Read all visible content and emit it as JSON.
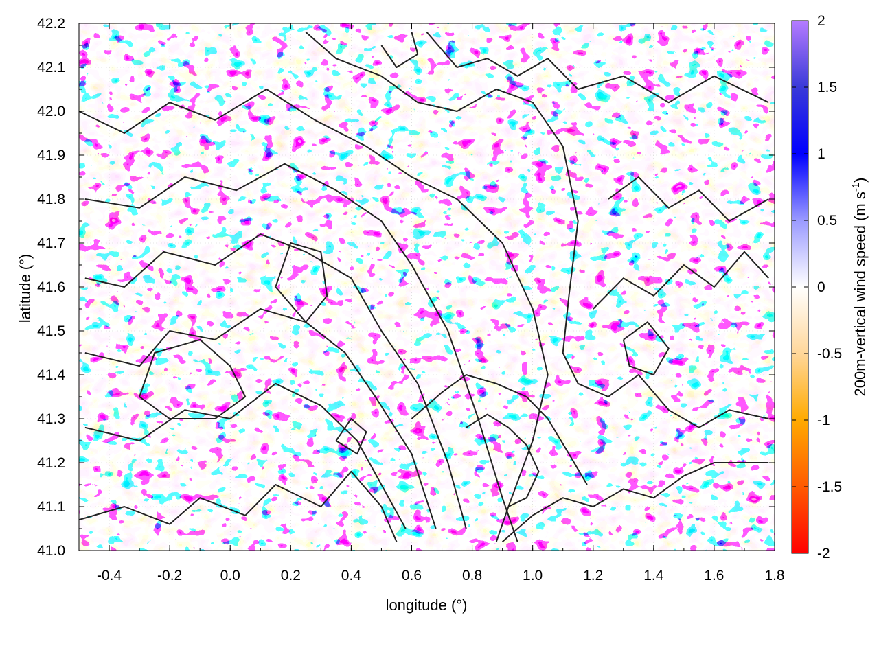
{
  "chart_data": {
    "type": "heatmap",
    "title": "",
    "xlabel": "longitude (°)",
    "ylabel": "latitude (°)",
    "xlim": [
      -0.5,
      1.8
    ],
    "ylim": [
      41.0,
      42.2
    ],
    "x_ticks": [
      "-0.4",
      "-0.2",
      "0.0",
      "0.2",
      "0.4",
      "0.6",
      "0.8",
      "1.0",
      "1.2",
      "1.4",
      "1.6",
      "1.8"
    ],
    "x_tick_values": [
      -0.4,
      -0.2,
      0.0,
      0.2,
      0.4,
      0.6,
      0.8,
      1.0,
      1.2,
      1.4,
      1.6,
      1.8
    ],
    "y_ticks": [
      "41.0",
      "41.1",
      "41.2",
      "41.3",
      "41.4",
      "41.5",
      "41.6",
      "41.7",
      "41.8",
      "41.9",
      "42.0",
      "42.1",
      "42.2"
    ],
    "y_tick_values": [
      41.0,
      41.1,
      41.2,
      41.3,
      41.4,
      41.5,
      41.6,
      41.7,
      41.8,
      41.9,
      42.0,
      42.1,
      42.2
    ],
    "colorbar": {
      "label": "200m-vertical wind speed (m s",
      "label_superscript": "-1",
      "label_close": ")",
      "range": [
        -2,
        2
      ],
      "ticks": [
        "2",
        "1.5",
        "1",
        "0.5",
        "0",
        "-0.5",
        "-1",
        "-1.5",
        "-2"
      ],
      "tick_values": [
        2,
        1.5,
        1,
        0.5,
        0,
        -0.5,
        -1,
        -1.5,
        -2
      ],
      "colors": [
        {
          "value": -2,
          "color": "#ff0000"
        },
        {
          "value": -1.5,
          "color": "#ff5a00"
        },
        {
          "value": -1,
          "color": "#ffaa00"
        },
        {
          "value": -0.5,
          "color": "#ffd79a"
        },
        {
          "value": 0,
          "color": "#ffffff"
        },
        {
          "value": 0.5,
          "color": "#9a9aff"
        },
        {
          "value": 1,
          "color": "#0000ff"
        },
        {
          "value": 1.5,
          "color": "#3a3ad8"
        },
        {
          "value": 2,
          "color": "#b57cff"
        }
      ]
    },
    "grid": true,
    "contour_color": "#222222",
    "field_description_colors": {
      "downdraft": "#ffb347",
      "updraft": "#1a1aff",
      "neutral": "#ffffff"
    },
    "contours": [
      [
        [
          -0.5,
          41.07
        ],
        [
          -0.35,
          41.1
        ],
        [
          -0.2,
          41.06
        ],
        [
          -0.1,
          41.12
        ],
        [
          0.05,
          41.08
        ],
        [
          0.15,
          41.15
        ],
        [
          0.3,
          41.1
        ],
        [
          0.4,
          41.18
        ],
        [
          0.5,
          41.1
        ],
        [
          0.55,
          41.02
        ]
      ],
      [
        [
          -0.48,
          41.28
        ],
        [
          -0.3,
          41.25
        ],
        [
          -0.15,
          41.32
        ],
        [
          0.0,
          41.3
        ],
        [
          0.15,
          41.38
        ],
        [
          0.3,
          41.33
        ],
        [
          0.42,
          41.25
        ],
        [
          0.5,
          41.15
        ],
        [
          0.58,
          41.05
        ]
      ],
      [
        [
          -0.48,
          41.45
        ],
        [
          -0.3,
          41.42
        ],
        [
          -0.2,
          41.5
        ],
        [
          -0.05,
          41.48
        ],
        [
          0.1,
          41.55
        ],
        [
          0.25,
          41.52
        ],
        [
          0.38,
          41.45
        ],
        [
          0.48,
          41.35
        ],
        [
          0.6,
          41.22
        ],
        [
          0.68,
          41.05
        ]
      ],
      [
        [
          -0.48,
          41.62
        ],
        [
          -0.35,
          41.6
        ],
        [
          -0.22,
          41.68
        ],
        [
          -0.05,
          41.65
        ],
        [
          0.1,
          41.72
        ],
        [
          0.25,
          41.68
        ],
        [
          0.4,
          41.62
        ],
        [
          0.5,
          41.5
        ],
        [
          0.62,
          41.38
        ],
        [
          0.72,
          41.2
        ],
        [
          0.78,
          41.05
        ]
      ],
      [
        [
          -0.48,
          41.8
        ],
        [
          -0.3,
          41.78
        ],
        [
          -0.15,
          41.85
        ],
        [
          0.02,
          41.82
        ],
        [
          0.18,
          41.88
        ],
        [
          0.35,
          41.82
        ],
        [
          0.5,
          41.75
        ],
        [
          0.6,
          41.65
        ],
        [
          0.72,
          41.5
        ],
        [
          0.82,
          41.3
        ],
        [
          0.9,
          41.12
        ],
        [
          0.95,
          41.02
        ]
      ],
      [
        [
          -0.5,
          42.0
        ],
        [
          -0.35,
          41.95
        ],
        [
          -0.2,
          42.02
        ],
        [
          -0.05,
          41.98
        ],
        [
          0.12,
          42.05
        ],
        [
          0.28,
          41.98
        ],
        [
          0.45,
          41.92
        ],
        [
          0.6,
          41.85
        ],
        [
          0.75,
          41.8
        ],
        [
          0.9,
          41.7
        ],
        [
          1.0,
          41.55
        ],
        [
          1.05,
          41.4
        ],
        [
          1.0,
          41.25
        ],
        [
          0.92,
          41.1
        ],
        [
          0.88,
          41.02
        ]
      ],
      [
        [
          0.25,
          42.18
        ],
        [
          0.35,
          42.12
        ],
        [
          0.5,
          42.08
        ],
        [
          0.62,
          42.02
        ],
        [
          0.75,
          42.0
        ],
        [
          0.88,
          42.05
        ],
        [
          1.0,
          42.02
        ],
        [
          1.1,
          41.92
        ],
        [
          1.15,
          41.75
        ],
        [
          1.12,
          41.58
        ],
        [
          1.1,
          41.45
        ],
        [
          1.15,
          41.38
        ],
        [
          1.25,
          41.35
        ],
        [
          1.35,
          41.4
        ],
        [
          1.45,
          41.32
        ],
        [
          1.55,
          41.28
        ],
        [
          1.65,
          41.32
        ],
        [
          1.78,
          41.3
        ]
      ],
      [
        [
          0.65,
          42.18
        ],
        [
          0.75,
          42.1
        ],
        [
          0.85,
          42.12
        ],
        [
          0.95,
          42.08
        ],
        [
          1.05,
          42.12
        ],
        [
          1.15,
          42.05
        ],
        [
          1.3,
          42.08
        ],
        [
          1.45,
          42.02
        ],
        [
          1.6,
          42.08
        ],
        [
          1.78,
          42.02
        ]
      ],
      [
        [
          0.9,
          41.02
        ],
        [
          1.0,
          41.08
        ],
        [
          1.1,
          41.12
        ],
        [
          1.2,
          41.1
        ],
        [
          1.3,
          41.14
        ],
        [
          1.4,
          41.12
        ],
        [
          1.5,
          41.17
        ],
        [
          1.6,
          41.2
        ],
        [
          1.7,
          41.2
        ],
        [
          1.78,
          41.2
        ]
      ],
      [
        [
          0.6,
          41.3
        ],
        [
          0.7,
          41.36
        ],
        [
          0.78,
          41.4
        ],
        [
          0.88,
          41.38
        ],
        [
          0.98,
          41.35
        ],
        [
          1.05,
          41.3
        ],
        [
          1.12,
          41.22
        ],
        [
          1.18,
          41.15
        ]
      ],
      [
        [
          0.78,
          41.28
        ],
        [
          0.85,
          41.31
        ],
        [
          0.92,
          41.28
        ],
        [
          0.98,
          41.24
        ],
        [
          1.02,
          41.18
        ],
        [
          0.98,
          41.12
        ],
        [
          0.92,
          41.1
        ]
      ],
      [
        [
          1.2,
          41.55
        ],
        [
          1.3,
          41.62
        ],
        [
          1.4,
          41.58
        ],
        [
          1.5,
          41.65
        ],
        [
          1.6,
          41.6
        ],
        [
          1.7,
          41.68
        ],
        [
          1.78,
          41.62
        ]
      ],
      [
        [
          1.25,
          41.8
        ],
        [
          1.35,
          41.85
        ],
        [
          1.45,
          41.78
        ],
        [
          1.55,
          41.82
        ],
        [
          1.65,
          41.75
        ],
        [
          1.78,
          41.8
        ]
      ],
      [
        [
          -0.3,
          41.35
        ],
        [
          -0.25,
          41.45
        ],
        [
          -0.1,
          41.48
        ],
        [
          0.0,
          41.42
        ],
        [
          0.05,
          41.35
        ],
        [
          -0.05,
          41.3
        ],
        [
          -0.2,
          41.3
        ],
        [
          -0.3,
          41.35
        ]
      ],
      [
        [
          0.15,
          41.6
        ],
        [
          0.2,
          41.7
        ],
        [
          0.3,
          41.68
        ],
        [
          0.32,
          41.58
        ],
        [
          0.25,
          41.52
        ],
        [
          0.15,
          41.6
        ]
      ],
      [
        [
          0.5,
          42.15
        ],
        [
          0.55,
          42.1
        ],
        [
          0.62,
          42.13
        ],
        [
          0.6,
          42.18
        ]
      ],
      [
        [
          1.3,
          41.48
        ],
        [
          1.38,
          41.52
        ],
        [
          1.45,
          41.46
        ],
        [
          1.4,
          41.4
        ],
        [
          1.32,
          41.42
        ],
        [
          1.3,
          41.48
        ]
      ],
      [
        [
          0.35,
          41.25
        ],
        [
          0.4,
          41.3
        ],
        [
          0.45,
          41.27
        ],
        [
          0.42,
          41.22
        ],
        [
          0.35,
          41.25
        ]
      ]
    ]
  }
}
